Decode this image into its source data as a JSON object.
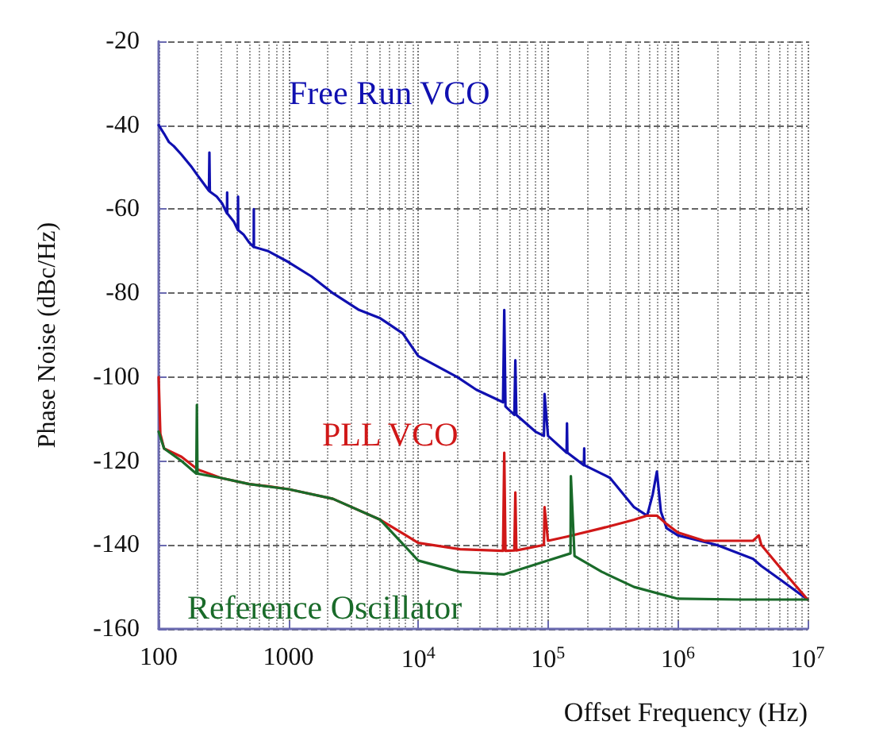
{
  "chart_data": {
    "type": "line",
    "xlabel": "Offset Frequency (Hz)",
    "ylabel": "Phase Noise (dBc/Hz)",
    "log": "x",
    "grid": true,
    "legend": false,
    "marker": "none",
    "line_style": "solid",
    "xlim": [
      100,
      10000000
    ],
    "xticks": [
      100,
      1000,
      {
        "value": 10000,
        "label": "10$^{4}$"
      },
      {
        "value": 100000,
        "label": "10$^{5}$"
      },
      {
        "value": 1000000,
        "label": "10$^{6}$"
      },
      {
        "value": 10000000,
        "label": "10$^{7}$"
      }
    ],
    "ylim": [
      -160,
      -20
    ],
    "yticks": [
      -160,
      -140,
      -120,
      -100,
      -80,
      -60,
      -40,
      -20
    ],
    "series": [
      {
        "name": "Free Run VCO",
        "color": "#1010b0",
        "x": [
          100,
          110,
          120,
          131,
          132,
          133,
          150,
          180,
          200,
          244,
          246,
          248,
          280,
          308,
          336,
          337,
          338,
          380,
          408,
          409,
          410,
          450,
          500,
          540,
          541,
          542,
          700,
          1000,
          1500,
          2200,
          3500,
          5100,
          5700,
          7600,
          10000,
          20000,
          28000,
          45000,
          46000,
          47000,
          55000,
          56000,
          57000,
          80000,
          93000,
          94000,
          100000,
          139000,
          140000,
          141000,
          189000,
          190000,
          191000,
          300000,
          460000,
          580000,
          640000,
          690000,
          740000,
          820000,
          1000000,
          2000000,
          3800000,
          4400000,
          6000000,
          10000000
        ],
        "values": [
          -40,
          -42,
          -44,
          -45,
          -45,
          -45,
          -47,
          -50,
          -52,
          -55.6,
          -46.5,
          -55.8,
          -57,
          -58.6,
          -61,
          -56,
          -61,
          -63,
          -65,
          -57,
          -65,
          -66,
          -68,
          -69,
          -60,
          -69,
          -70,
          -72.6,
          -76,
          -80,
          -84,
          -86,
          -87,
          -89.6,
          -95,
          -100,
          -103,
          -106,
          -84,
          -107,
          -109,
          -96,
          -109,
          -113,
          -114,
          -104,
          -114,
          -118,
          -111,
          -118,
          -121,
          -117,
          -121,
          -124,
          -131,
          -133,
          -128,
          -122.5,
          -132,
          -136,
          -137.7,
          -140,
          -143.3,
          -145,
          -148,
          -153
        ]
      },
      {
        "name": "PLL VCO",
        "color": "#d01818",
        "x": [
          100,
          103,
          110,
          150,
          200,
          300,
          500,
          700,
          1000,
          2200,
          5100,
          10000,
          21000,
          45000,
          46000,
          47000,
          55000,
          56000,
          57000,
          93000,
          94000,
          100000,
          140000,
          260000,
          460000,
          580000,
          690000,
          820000,
          1000000,
          1600000,
          3800000,
          4200000,
          4400000,
          6000000,
          10000000
        ],
        "values": [
          -100,
          -113.5,
          -117,
          -119,
          -122,
          -124,
          -125.5,
          -126,
          -126.7,
          -129,
          -134,
          -139.5,
          -141,
          -141.4,
          -118,
          -141.4,
          -141.3,
          -127.5,
          -141.3,
          -140,
          -131,
          -139,
          -138,
          -136,
          -134,
          -133,
          -133,
          -135,
          -137,
          -139,
          -139,
          -137.7,
          -140,
          -145,
          -153
        ]
      },
      {
        "name": "Reference Oscillator",
        "color": "#1a6b2a",
        "x": [
          100,
          110,
          150,
          195,
          197,
          199,
          300,
          500,
          1000,
          2200,
          5100,
          10000,
          21000,
          46000,
          100000,
          149000,
          150000,
          160000,
          260000,
          460000,
          1000000,
          3000000,
          10000000
        ],
        "values": [
          -113,
          -117,
          -120,
          -123,
          -106.6,
          -123,
          -124,
          -125.5,
          -126.7,
          -129,
          -134,
          -143.7,
          -146.4,
          -147,
          -143.7,
          -142,
          -123.6,
          -142.6,
          -146.4,
          -150,
          -152.8,
          -153,
          -153
        ]
      }
    ]
  }
}
